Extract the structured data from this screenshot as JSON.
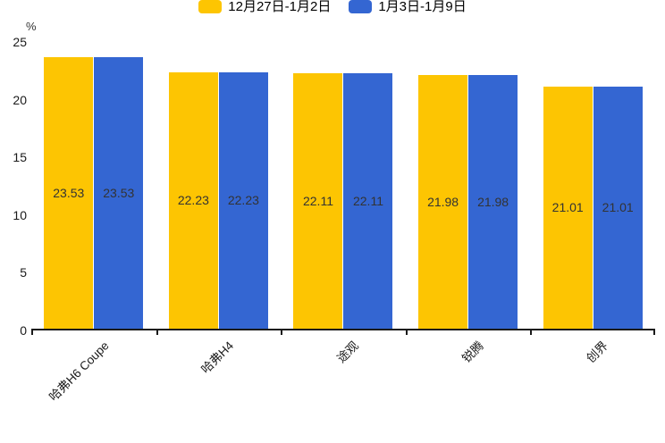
{
  "page": {
    "background": "#ffffff"
  },
  "chart_data": {
    "type": "bar",
    "title": "",
    "unit_label": "%",
    "categories": [
      "哈弗H6 Coupe",
      "哈弗H4",
      "途观",
      "锐腾",
      "创界"
    ],
    "series": [
      {
        "name": "12月27日-1月2日",
        "color": "#FDC502",
        "values": [
          23.53,
          22.23,
          22.11,
          21.98,
          21.01
        ]
      },
      {
        "name": "1月3日-1月9日",
        "color": "#3466D2",
        "values": [
          23.53,
          22.23,
          22.11,
          21.98,
          21.01
        ]
      }
    ],
    "ylim": [
      0,
      25
    ],
    "yticks": [
      0,
      5,
      10,
      15,
      20,
      25
    ],
    "xlabel": "",
    "ylabel": "%",
    "legend_position": "top",
    "grid": false,
    "value_labels": true,
    "value_label_color": "#333333",
    "axis_color": "#1a1a1a"
  }
}
